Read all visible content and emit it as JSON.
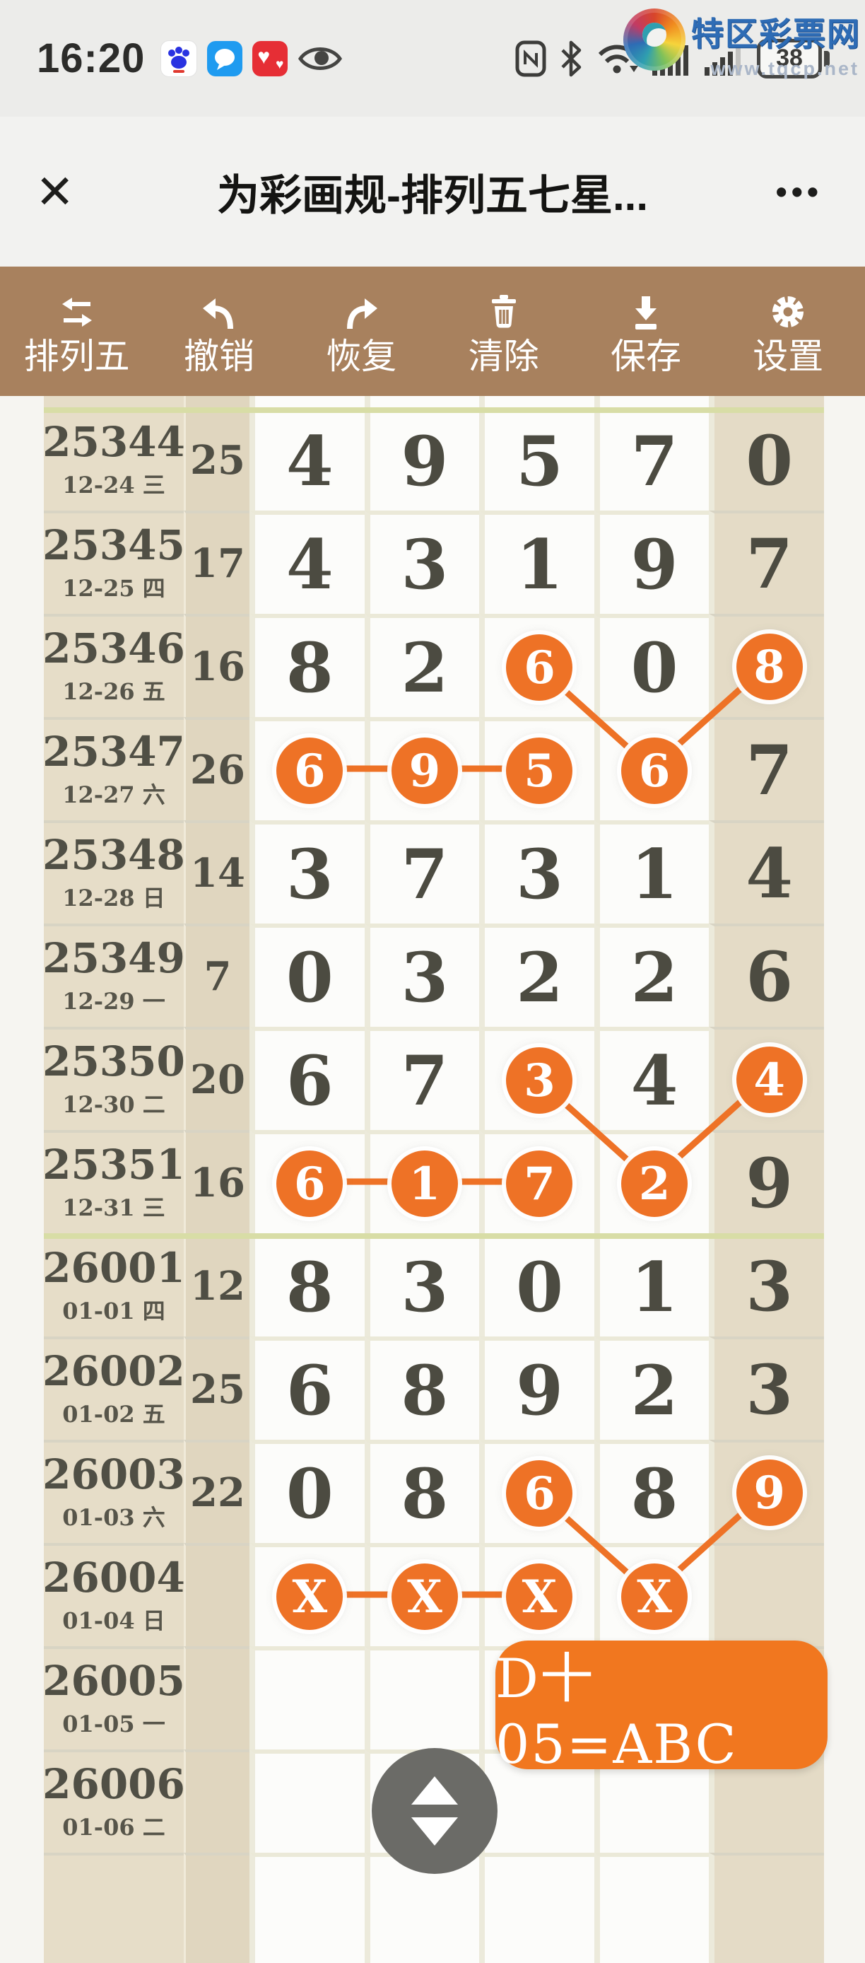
{
  "status_bar": {
    "time": "16:20",
    "battery_percent": "38",
    "left_icons": [
      "baidu-app",
      "messages-app",
      "health-app",
      "eye"
    ],
    "right_icons": [
      "nfc",
      "bluetooth",
      "wifi",
      "signal-1",
      "signal-2",
      "battery"
    ]
  },
  "logo": {
    "title": "特区彩票网",
    "url": "www.tqcp.net"
  },
  "nav": {
    "close": "✕",
    "title": "为彩画规-排列五七星...",
    "menu": "•••"
  },
  "toolbar": {
    "items": [
      {
        "label": "排列五",
        "icon": "swap-icon"
      },
      {
        "label": "撤销",
        "icon": "undo-icon"
      },
      {
        "label": "恢复",
        "icon": "redo-icon"
      },
      {
        "label": "清除",
        "icon": "trash-icon"
      },
      {
        "label": "保存",
        "icon": "save-icon"
      },
      {
        "label": "设置",
        "icon": "gear-icon"
      }
    ]
  },
  "table": {
    "rows": [
      {
        "strip": true,
        "issue": "",
        "date": "",
        "sum": "",
        "digits": [
          "",
          "",
          "",
          "",
          ""
        ],
        "circled": []
      },
      {
        "sep": true,
        "issue": "25344",
        "date": "12-24 三",
        "sum": "25",
        "digits": [
          "4",
          "9",
          "5",
          "7",
          "0"
        ],
        "circled": []
      },
      {
        "issue": "25345",
        "date": "12-25 四",
        "sum": "17",
        "digits": [
          "4",
          "3",
          "1",
          "9",
          "7"
        ],
        "circled": []
      },
      {
        "issue": "25346",
        "date": "12-26 五",
        "sum": "16",
        "digits": [
          "8",
          "2",
          "6",
          "0",
          "8"
        ],
        "circled": [
          2,
          4
        ]
      },
      {
        "issue": "25347",
        "date": "12-27 六",
        "sum": "26",
        "digits": [
          "6",
          "9",
          "5",
          "6",
          "7"
        ],
        "circled": [
          0,
          1,
          2,
          3
        ]
      },
      {
        "issue": "25348",
        "date": "12-28 日",
        "sum": "14",
        "digits": [
          "3",
          "7",
          "3",
          "1",
          "4"
        ],
        "circled": []
      },
      {
        "issue": "25349",
        "date": "12-29 一",
        "sum": "7",
        "digits": [
          "0",
          "3",
          "2",
          "2",
          "6"
        ],
        "circled": []
      },
      {
        "issue": "25350",
        "date": "12-30 二",
        "sum": "20",
        "digits": [
          "6",
          "7",
          "3",
          "4",
          "4"
        ],
        "circled": [
          2,
          4
        ]
      },
      {
        "issue": "25351",
        "date": "12-31 三",
        "sum": "16",
        "digits": [
          "6",
          "1",
          "7",
          "2",
          "9"
        ],
        "circled": [
          0,
          1,
          2,
          3
        ]
      },
      {
        "sep": true,
        "issue": "26001",
        "date": "01-01 四",
        "sum": "12",
        "digits": [
          "8",
          "3",
          "0",
          "1",
          "3"
        ],
        "circled": []
      },
      {
        "issue": "26002",
        "date": "01-02 五",
        "sum": "25",
        "digits": [
          "6",
          "8",
          "9",
          "2",
          "3"
        ],
        "circled": []
      },
      {
        "issue": "26003",
        "date": "01-03 六",
        "sum": "22",
        "digits": [
          "0",
          "8",
          "6",
          "8",
          "9"
        ],
        "circled": [
          2,
          4
        ]
      },
      {
        "issue": "26004",
        "date": "01-04 日",
        "sum": "",
        "digits": [
          "X",
          "X",
          "X",
          "X",
          ""
        ],
        "circled": [
          0,
          1,
          2,
          3
        ]
      },
      {
        "issue": "26005",
        "date": "01-05 一",
        "sum": "",
        "digits": [
          "",
          "",
          "",
          "",
          ""
        ],
        "circled": []
      },
      {
        "issue": "26006",
        "date": "01-06 二",
        "sum": "",
        "digits": [
          "",
          "",
          "",
          "",
          ""
        ],
        "circled": []
      },
      {
        "last": true,
        "issue": "",
        "date": "",
        "sum": "",
        "digits": [
          "",
          "",
          "",
          "",
          ""
        ],
        "circled": []
      }
    ]
  },
  "connections": [
    {
      "from": "25346:2",
      "to": "25347:3"
    },
    {
      "from": "25346:4",
      "to": "25347:3"
    },
    {
      "from": "25347:0",
      "to": "25347:1"
    },
    {
      "from": "25347:1",
      "to": "25347:2"
    },
    {
      "from": "25350:2",
      "to": "25351:3"
    },
    {
      "from": "25350:4",
      "to": "25351:3"
    },
    {
      "from": "25351:0",
      "to": "25351:1"
    },
    {
      "from": "25351:1",
      "to": "25351:2"
    },
    {
      "from": "26003:2",
      "to": "26004:3"
    },
    {
      "from": "26003:4",
      "to": "26004:3"
    },
    {
      "from": "26004:0",
      "to": "26004:1"
    },
    {
      "from": "26004:1",
      "to": "26004:2"
    }
  ],
  "badge": {
    "text": "D十05=ABC"
  },
  "colors": {
    "accent_orange": "#ee7226",
    "badge_orange": "#f1771f",
    "toolbar_brown": "#a8815e",
    "beige_cell": "#e6ddc8",
    "sum_cell": "#e0d6bf",
    "digit_ink": "#4c4b41",
    "separator_green": "#d8dda6",
    "scroll_gray": "#6b6b67",
    "logo_blue": "#2e6cb5"
  }
}
